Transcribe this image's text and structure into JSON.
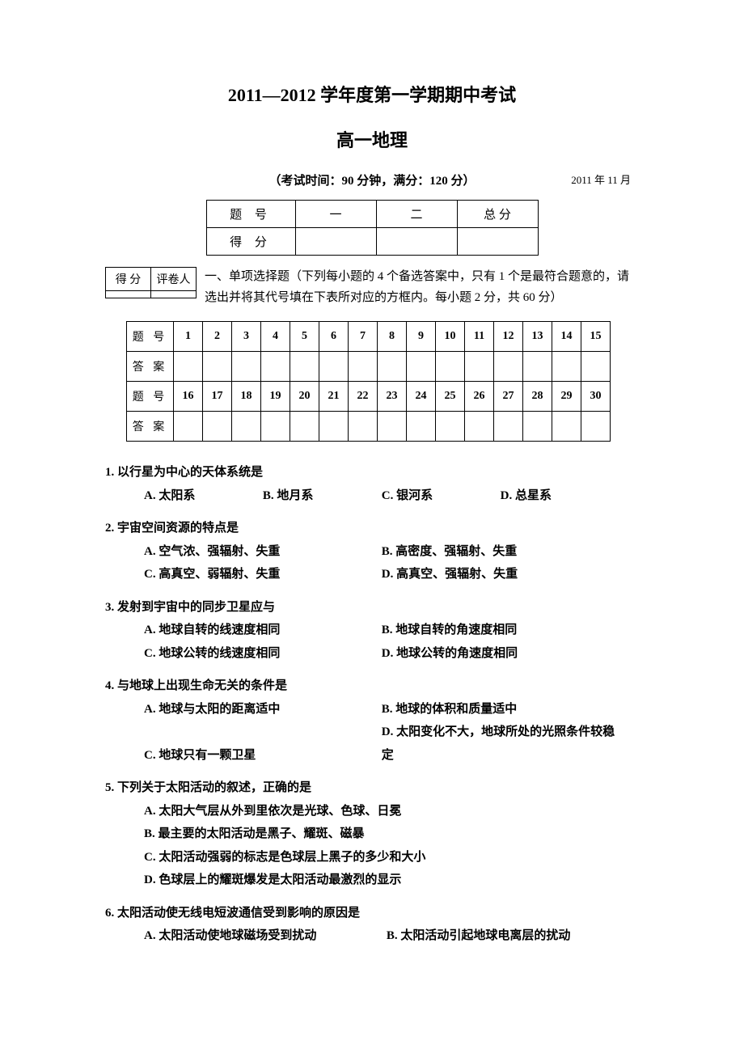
{
  "title1": "2011—2012 学年度第一学期期中考试",
  "title2": "高一地理",
  "exam_info": "（考试时间：90 分钟，满分：120 分）",
  "exam_date": "2011 年 11 月",
  "score_summary": {
    "row1": {
      "label": "题  号",
      "c1": "一",
      "c2": "二",
      "c3": "总  分"
    },
    "row2": {
      "label": "得  分",
      "c1": "",
      "c2": "",
      "c3": ""
    }
  },
  "small_score": {
    "r1c1": "得 分",
    "r1c2": "评卷人",
    "r2c1": "",
    "r2c2": ""
  },
  "section1_text": "一、单项选择题（下列每小题的 4 个备选答案中，只有 1 个是最符合题意的，请选出并将其代号填在下表所对应的方框内。每小题 2 分，共 60 分）",
  "answer_grid": {
    "rowlabel_q": "题 号",
    "rowlabel_a": "答 案",
    "nums1": [
      "1",
      "2",
      "3",
      "4",
      "5",
      "6",
      "7",
      "8",
      "9",
      "10",
      "11",
      "12",
      "13",
      "14",
      "15"
    ],
    "nums2": [
      "16",
      "17",
      "18",
      "19",
      "20",
      "21",
      "22",
      "23",
      "24",
      "25",
      "26",
      "27",
      "28",
      "29",
      "30"
    ]
  },
  "questions": [
    {
      "num": "1.",
      "stem": "以行星为中心的天体系统是",
      "layout": "layout-4",
      "opts": [
        "A. 太阳系",
        "B. 地月系",
        "C. 银河系",
        "D. 总星系"
      ]
    },
    {
      "num": "2.",
      "stem": "宇宙空间资源的特点是",
      "layout": "layout-2",
      "opts": [
        "A. 空气浓、强辐射、失重",
        "B. 高密度、强辐射、失重",
        "C. 高真空、弱辐射、失重",
        "D. 高真空、强辐射、失重"
      ]
    },
    {
      "num": "3.",
      "stem": "发射到宇宙中的同步卫星应与",
      "layout": "layout-2",
      "opts": [
        "A. 地球自转的线速度相同",
        "B. 地球自转的角速度相同",
        "C. 地球公转的线速度相同",
        "D. 地球公转的角速度相同"
      ]
    },
    {
      "num": "4.",
      "stem": "与地球上出现生命无关的条件是",
      "layout": "layout-2",
      "opts": [
        "A. 地球与太阳的距离适中",
        "B. 地球的体积和质量适中",
        "C. 地球只有一颗卫星",
        "D. 太阳变化不大，地球所处的光照条件较稳定"
      ]
    },
    {
      "num": "5.",
      "stem": "下列关于太阳活动的叙述，正确的是",
      "layout": "layout-1",
      "opts": [
        "A. 太阳大气层从外到里依次是光球、色球、日冕",
        "B. 最主要的太阳活动是黑子、耀斑、磁暴",
        "C. 太阳活动强弱的标志是色球层上黑子的多少和大小",
        "D. 色球层上的耀斑爆发是太阳活动最激烈的显示"
      ]
    },
    {
      "num": "6.",
      "stem": "太阳活动使无线电短波通信受到影响的原因是",
      "layout": "layout-q6",
      "opts": [
        "A. 太阳活动使地球磁场受到扰动",
        "B. 太阳活动引起地球电离层的扰动"
      ]
    }
  ]
}
